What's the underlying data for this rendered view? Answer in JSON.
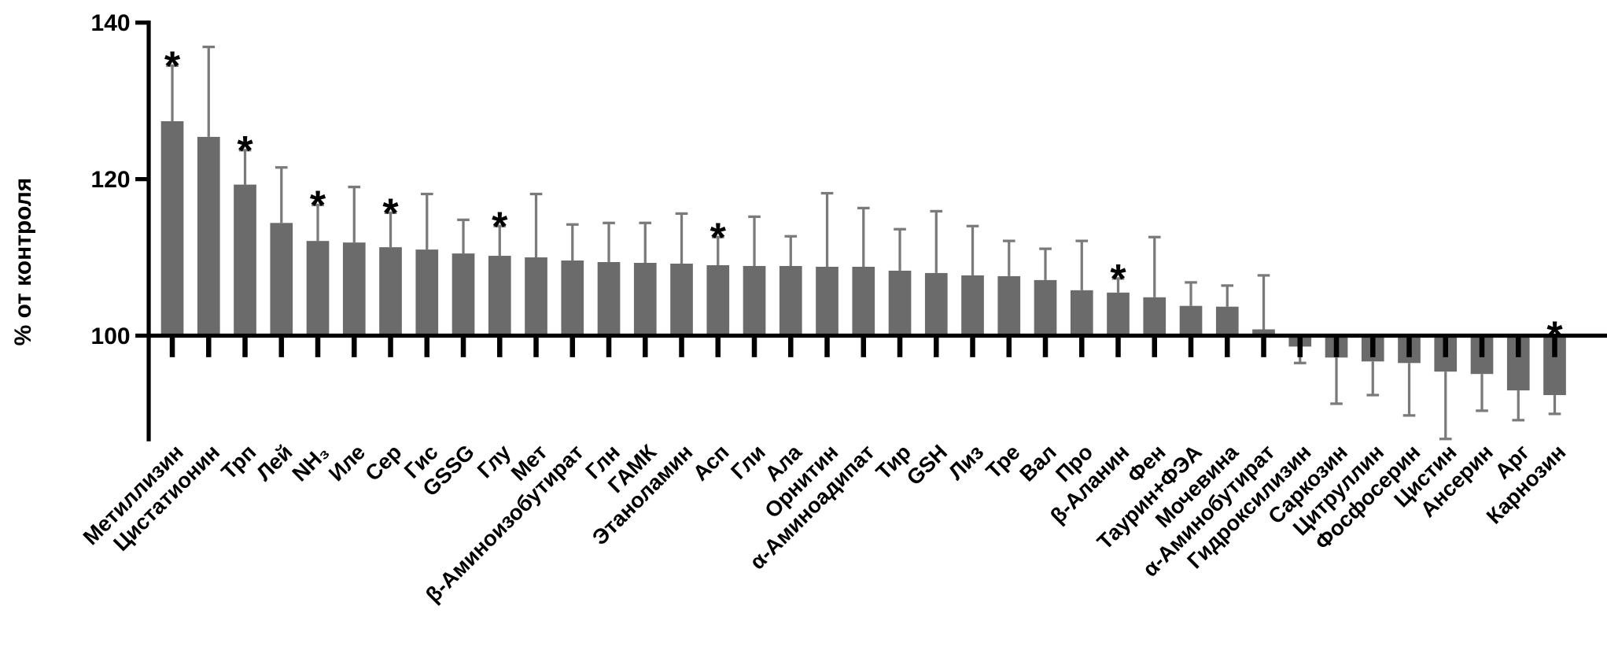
{
  "chart_data": {
    "type": "bar",
    "y_label": "% от контроля",
    "categories": [
      "Метиллизин",
      "Цистатионин",
      "Трп",
      "Лей",
      "NH₃",
      "Иле",
      "Сер",
      "Гис",
      "GSSG",
      "Глу",
      "Мет",
      "β-Аминоизобутират",
      "Глн",
      "ГАМК",
      "Этаноламин",
      "Асп",
      "Гли",
      "Ала",
      "Орнитин",
      "α-Аминоадипат",
      "Тир",
      "GSH",
      "Лиз",
      "Тре",
      "Вал",
      "Про",
      "β-Аланин",
      "Фен",
      "Таурин+ФЭА",
      "Мочевина",
      "α-Аминобутират",
      "Гидроксилизин",
      "Саркозин",
      "Цитруллин",
      "Фосфосерин",
      "Цистин",
      "Ансерин",
      "Арг",
      "Карнозин"
    ],
    "values": [
      127.4,
      125.4,
      119.3,
      114.4,
      112.1,
      111.9,
      111.3,
      111.0,
      110.5,
      110.2,
      110.0,
      109.6,
      109.4,
      109.3,
      109.2,
      109.0,
      108.9,
      108.9,
      108.8,
      108.8,
      108.3,
      108.0,
      107.7,
      107.6,
      107.1,
      105.8,
      105.5,
      104.9,
      103.8,
      103.7,
      100.8,
      98.6,
      97.2,
      96.7,
      96.5,
      95.4,
      95.1,
      93.0,
      92.4
    ],
    "errors": [
      7.1,
      11.5,
      4.4,
      7.1,
      4.6,
      7.1,
      4.4,
      7.1,
      4.3,
      3.8,
      8.1,
      4.6,
      5.0,
      5.1,
      6.4,
      3.6,
      6.3,
      3.8,
      9.4,
      7.5,
      5.3,
      7.9,
      6.3,
      4.5,
      4.0,
      6.3,
      1.8,
      7.7,
      3.0,
      2.7,
      6.9,
      2.1,
      5.9,
      4.3,
      6.7,
      8.6,
      4.7,
      3.8,
      2.4
    ],
    "annotations": [
      "*",
      null,
      "*",
      null,
      "*",
      null,
      "*",
      null,
      null,
      "*",
      null,
      null,
      null,
      null,
      null,
      "*",
      null,
      null,
      null,
      null,
      null,
      null,
      null,
      null,
      null,
      null,
      "*",
      null,
      null,
      null,
      null,
      null,
      null,
      null,
      null,
      null,
      null,
      null,
      "*"
    ],
    "baseline": 100,
    "color": "#6b6b6b",
    "error_color": "#7a7a7a",
    "ylim": [
      86.5,
      140
    ],
    "yticks": [
      100,
      120,
      140
    ]
  }
}
